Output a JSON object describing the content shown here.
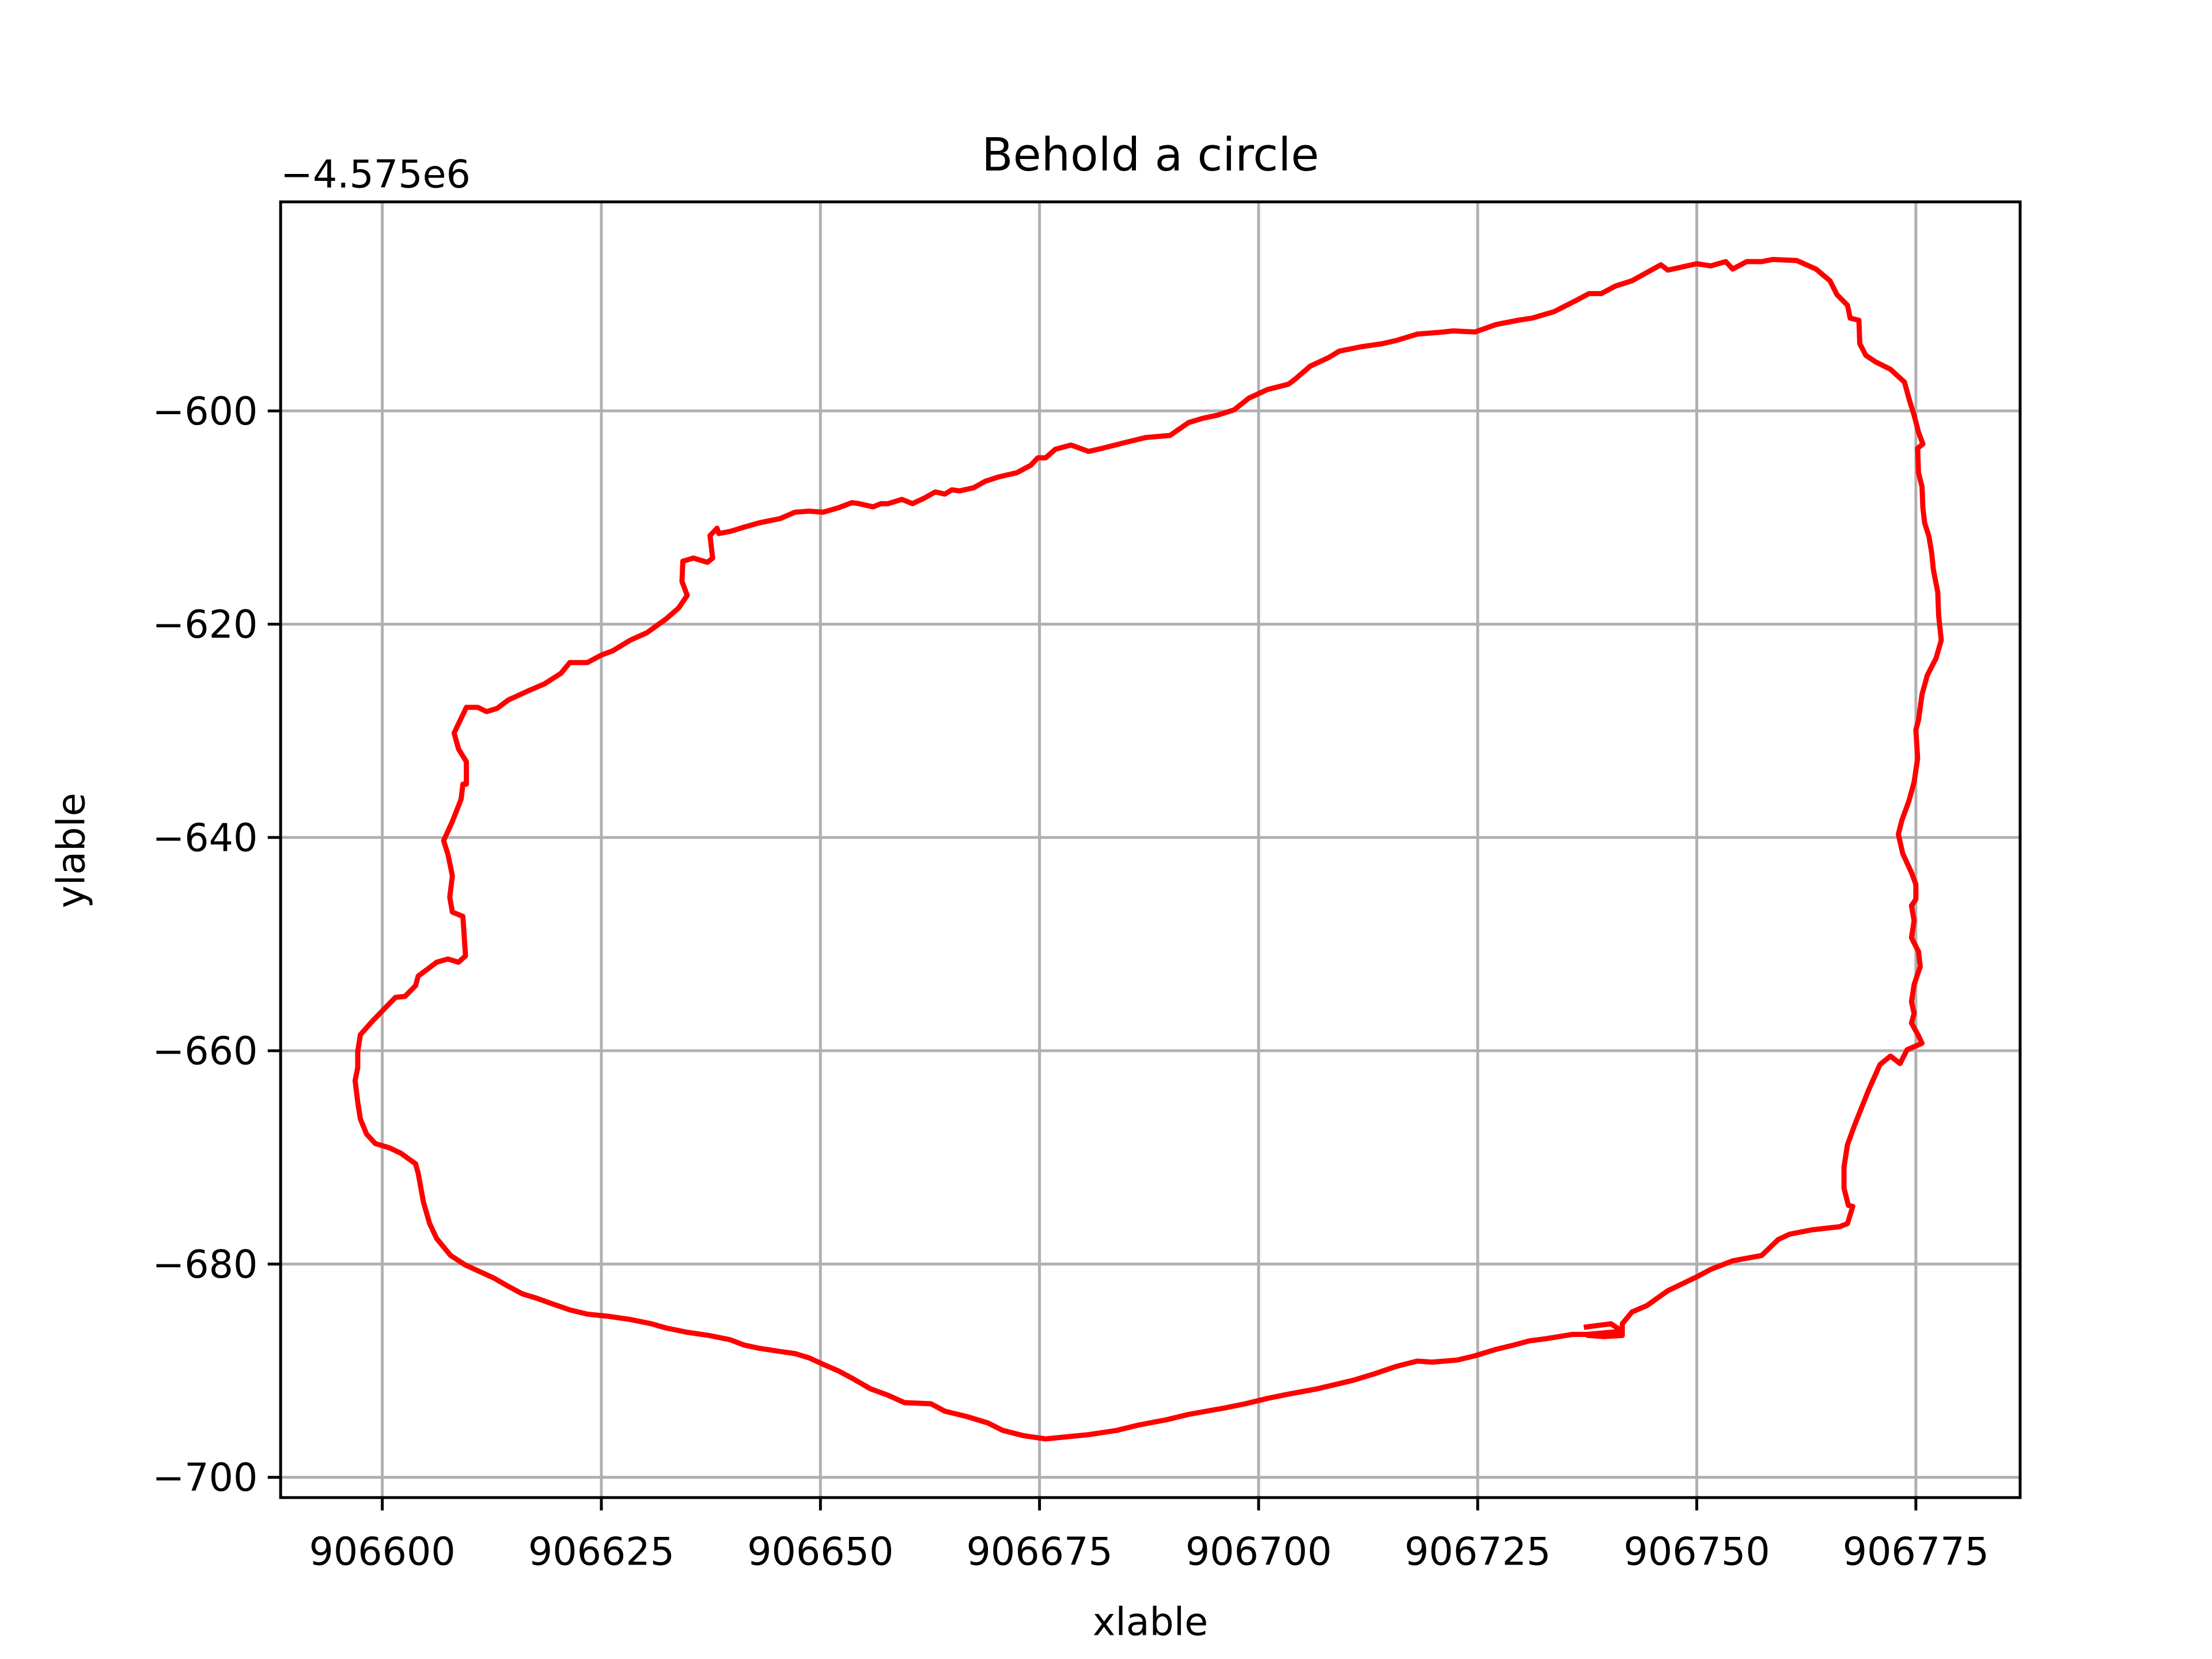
{
  "chart_data": {
    "type": "line",
    "title": "Behold a circle",
    "xlabel": "xlable",
    "ylabel": "ylable",
    "y_offset_text": "−4.575e6",
    "color": "#ff0000",
    "grid": true,
    "xlim": [
      906588.4,
      906786.9
    ],
    "ylim": [
      -701.9,
      -580.4
    ],
    "xticks": [
      906600,
      906625,
      906650,
      906675,
      906700,
      906725,
      906750,
      906775
    ],
    "yticks": [
      {
        "value": -700,
        "label": "−700"
      },
      {
        "value": -680,
        "label": "−680"
      },
      {
        "value": -660,
        "label": "−660"
      },
      {
        "value": -640,
        "label": "−640"
      },
      {
        "value": -620,
        "label": "−620"
      },
      {
        "value": -600,
        "label": "−600"
      }
    ],
    "x": [
      906737.4,
      906740.2,
      906741.5,
      906737.4,
      906735.8,
      906732.8,
      906730.9,
      906729.1,
      906727.1,
      906724.7,
      906722.7,
      906719.8,
      906718.1,
      906715.7,
      906713.2,
      906710.8,
      906706.7,
      906703.4,
      906701.0,
      906698.5,
      906696.1,
      906692.0,
      906689.5,
      906686.3,
      906683.8,
      906680.6,
      906678.1,
      906675.7,
      906673.2,
      906670.8,
      906669.1,
      906666.7,
      906664.2,
      906662.6,
      906659.6,
      906657.7,
      906655.7,
      906653.6,
      906652.0,
      906650.3,
      906648.7,
      906647.1,
      906645.4,
      906643.0,
      906641.3,
      906639.7,
      906637.3,
      906634.8,
      906632.4,
      906630.7,
      906628.3,
      906625.8,
      906623.4,
      906621.4,
      906619.3,
      906617.6,
      906616.0,
      906614.4,
      906612.7,
      906611.1,
      906609.5,
      906607.8,
      906606.2,
      906605.4,
      906604.7,
      906604.1,
      906603.8,
      906602.1,
      906600.8,
      906599.2,
      906598.2,
      906597.5,
      906597.2,
      906596.9,
      906597.2,
      906597.2,
      906597.5,
      906598.9,
      906600.2,
      906601.5,
      906602.6,
      906603.8,
      906604.1,
      906605.4,
      906606.2,
      906607.5,
      906608.7,
      906609.5,
      906609.2,
      906608.0,
      906607.7,
      906608.0,
      906607.5,
      906607.0,
      906608.0,
      906609.0,
      906609.2,
      906609.6,
      906609.6,
      906608.7,
      906608.2,
      906609.6,
      906610.9,
      906611.9,
      906613.1,
      906614.4,
      906616.8,
      906618.5,
      906620.4,
      906621.4,
      906623.4,
      906625.0,
      906626.3,
      906628.3,
      906630.2,
      906632.4,
      906633.8,
      906634.8,
      906634.2,
      906634.3,
      906635.5,
      906637.1,
      906637.7,
      906637.4,
      906638.2,
      906638.4,
      906639.7,
      906641.3,
      906643.0,
      906645.4,
      906647.1,
      906648.7,
      906650.3,
      906652.0,
      906653.6,
      906654.4,
      906656.0,
      906656.9,
      906657.7,
      906658.5,
      906659.3,
      906660.5,
      906661.8,
      906663.1,
      906664.2,
      906665.0,
      906665.9,
      906667.5,
      906668.8,
      906670.3,
      906672.4,
      906674.0,
      906674.8,
      906675.7,
      906676.8,
      906678.6,
      906680.6,
      906682.2,
      906684.6,
      906687.1,
      906689.9,
      906692.0,
      906693.6,
      906695.3,
      906697.2,
      906698.9,
      906701.0,
      906703.4,
      906704.2,
      906705.9,
      906708.0,
      906709.2,
      906711.6,
      906714.1,
      906715.7,
      906718.1,
      906721.1,
      906722.2,
      906724.7,
      906727.1,
      906729.6,
      906731.2,
      906733.7,
      906736.1,
      906737.7,
      906739.1,
      906740.7,
      906742.6,
      906745.9,
      906746.7,
      906750.0,
      906751.6,
      906753.3,
      906754.1,
      906755.7,
      906757.4,
      906758.7,
      906761.4,
      906763.6,
      906765.2,
      906766.0,
      906767.2,
      906767.5,
      906768.5,
      906768.6,
      906769.3,
      906770.4,
      906772.1,
      906773.7,
      906774.3,
      906774.8,
      906775.3,
      906775.8,
      906775.2,
      906775.3,
      906775.7,
      906775.8,
      906776.0,
      906776.5,
      906776.8,
      906777.0,
      906777.5,
      906777.6,
      906777.9,
      906777.3,
      906776.3,
      906775.7,
      906775.3,
      906775.0,
      906775.2,
      906774.8,
      906774.2,
      906773.4,
      906773.0,
      906773.5,
      906774.5,
      906775.0,
      906775.0,
      906774.5,
      906774.8,
      906774.5,
      906775.3,
      906775.5,
      906774.8,
      906774.5,
      906774.8,
      906774.5,
      906775.3,
      906775.7,
      906774.0,
      906773.2,
      906772.1,
      906770.9,
      906769.6,
      906768.0,
      906767.2,
      906766.8,
      906766.8,
      906767.3,
      906767.8,
      906767.2,
      906766.3,
      906763.1,
      906760.6,
      906759.3,
      906757.4,
      906754.1,
      906751.6,
      906750.0,
      906746.7,
      906744.3,
      906742.6,
      906741.5,
      906741.5,
      906739.4,
      906737.7
    ],
    "values": [
      -685.9,
      -685.6,
      -686.3,
      -686.6,
      -686.6,
      -687.0,
      -687.2,
      -687.6,
      -688.0,
      -688.6,
      -689.0,
      -689.2,
      -689.1,
      -689.6,
      -690.3,
      -690.9,
      -691.7,
      -692.2,
      -692.6,
      -693.1,
      -693.5,
      -694.1,
      -694.6,
      -695.1,
      -695.6,
      -696.0,
      -696.2,
      -696.4,
      -696.1,
      -695.6,
      -694.9,
      -694.3,
      -693.8,
      -693.1,
      -693.0,
      -692.3,
      -691.7,
      -690.7,
      -690.0,
      -689.4,
      -688.8,
      -688.4,
      -688.2,
      -687.9,
      -687.6,
      -687.1,
      -686.7,
      -686.4,
      -686.0,
      -685.6,
      -685.2,
      -684.9,
      -684.7,
      -684.3,
      -683.7,
      -683.2,
      -682.8,
      -682.1,
      -681.3,
      -680.7,
      -680.1,
      -679.2,
      -677.6,
      -676.2,
      -674.2,
      -671.5,
      -670.6,
      -669.6,
      -669.1,
      -668.7,
      -667.8,
      -666.4,
      -664.8,
      -662.8,
      -661.6,
      -660.1,
      -658.5,
      -657.2,
      -656.1,
      -655.0,
      -654.9,
      -653.9,
      -653.0,
      -652.2,
      -651.7,
      -651.4,
      -651.7,
      -651.1,
      -647.4,
      -647.0,
      -645.6,
      -643.6,
      -641.6,
      -640.3,
      -638.5,
      -636.4,
      -635.0,
      -635.0,
      -632.9,
      -631.7,
      -630.2,
      -627.8,
      -627.8,
      -628.2,
      -627.9,
      -627.1,
      -626.2,
      -625.6,
      -624.6,
      -623.6,
      -623.6,
      -622.9,
      -622.5,
      -621.5,
      -620.8,
      -619.5,
      -618.5,
      -617.3,
      -616.0,
      -614.1,
      -613.8,
      -614.2,
      -613.8,
      -611.7,
      -611.0,
      -611.5,
      -611.3,
      -610.9,
      -610.5,
      -610.1,
      -609.5,
      -609.4,
      -609.5,
      -609.1,
      -608.6,
      -608.7,
      -609.0,
      -608.7,
      -608.7,
      -608.5,
      -608.3,
      -608.7,
      -608.2,
      -607.6,
      -607.8,
      -607.4,
      -607.5,
      -607.2,
      -606.6,
      -606.2,
      -605.8,
      -605.1,
      -604.4,
      -604.4,
      -603.6,
      -603.2,
      -603.8,
      -603.5,
      -603.0,
      -602.5,
      -602.3,
      -601.1,
      -600.7,
      -600.4,
      -599.9,
      -598.8,
      -598.0,
      -597.5,
      -597.0,
      -595.8,
      -595.0,
      -594.4,
      -594.0,
      -593.7,
      -593.4,
      -592.8,
      -592.6,
      -592.5,
      -592.6,
      -591.9,
      -591.5,
      -591.3,
      -590.7,
      -589.7,
      -589.0,
      -589.0,
      -588.3,
      -587.8,
      -586.3,
      -586.8,
      -586.2,
      -586.4,
      -586.0,
      -586.7,
      -586.0,
      -586.0,
      -585.8,
      -585.9,
      -586.7,
      -587.8,
      -589.1,
      -590.1,
      -591.3,
      -591.5,
      -593.7,
      -594.8,
      -595.4,
      -596.1,
      -597.3,
      -599.1,
      -600.4,
      -602.0,
      -603.1,
      -603.5,
      -605.8,
      -607.1,
      -609.1,
      -610.5,
      -611.8,
      -613.3,
      -614.9,
      -617.0,
      -619.2,
      -621.5,
      -623.2,
      -624.8,
      -626.6,
      -629.0,
      -629.9,
      -632.6,
      -634.8,
      -636.6,
      -638.4,
      -639.7,
      -641.5,
      -643.3,
      -644.4,
      -645.8,
      -646.4,
      -647.8,
      -649.4,
      -650.7,
      -652.1,
      -653.8,
      -655.4,
      -656.5,
      -657.4,
      -658.6,
      -659.3,
      -659.9,
      -661.2,
      -660.5,
      -661.3,
      -663.7,
      -667.0,
      -668.8,
      -670.9,
      -672.9,
      -674.5,
      -674.6,
      -676.2,
      -676.5,
      -676.8,
      -677.2,
      -677.7,
      -679.2,
      -679.7,
      -680.5,
      -681.2,
      -682.5,
      -683.9,
      -684.5,
      -685.6,
      -686.7,
      -686.8,
      -686.7
    ]
  }
}
